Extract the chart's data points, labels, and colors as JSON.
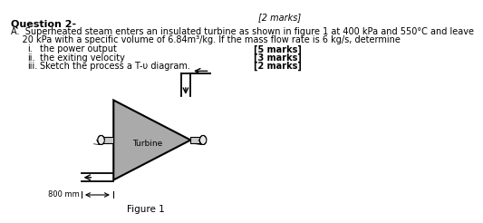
{
  "header_partial": "[2 marks]",
  "title": "Question 2-",
  "line_A": "A.  Superheated steam enters an insulated turbine as shown in figure 1 at 400 kPa and 550°C and leave",
  "line_B": "    20 kPa with a specific volume of 6.84m³/kg. If the mass flow rate is 6 kg/s, determine",
  "items": [
    {
      "roman": "i.",
      "text": "the power output",
      "marks": "[5 marks]"
    },
    {
      "roman": "ii.",
      "text": "the exiting velocity",
      "marks": "[3 marks]"
    },
    {
      "roman": "iii.",
      "text": "Sketch the process a T-υ diagram.",
      "marks": "[2 marks]"
    }
  ],
  "figure_label": "Figure 1",
  "dimension_label": "800 mm",
  "turbine_label": "Turbine",
  "bg_color": "#ffffff",
  "text_color": "#000000",
  "turbine_fill": "#aaaaaa",
  "shaft_fill": "#cccccc"
}
